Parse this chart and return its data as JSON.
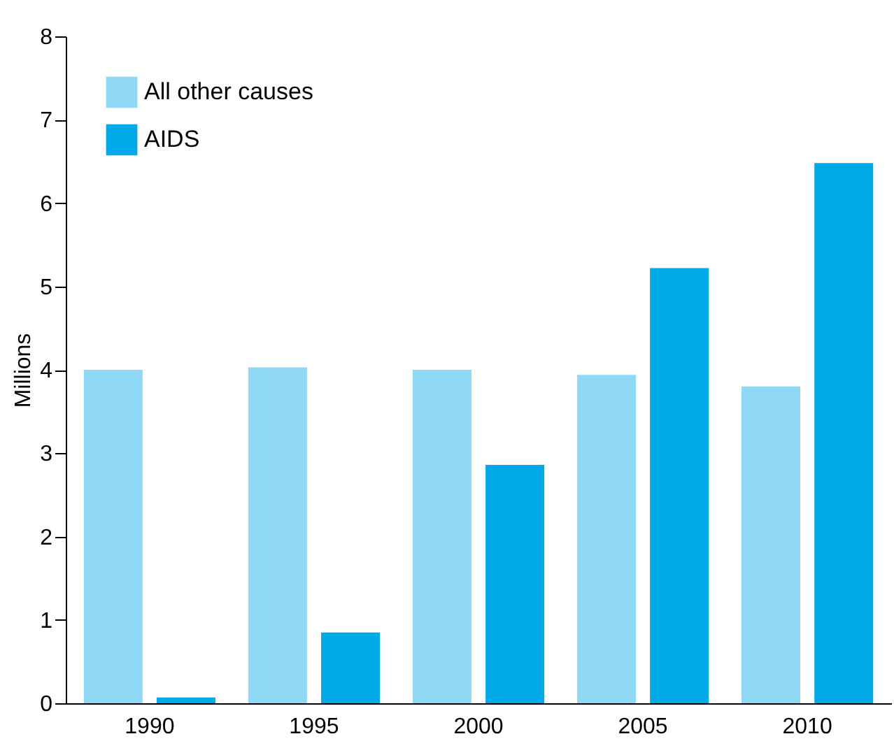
{
  "chart_data": {
    "type": "bar",
    "ylabel": "Millions",
    "categories": [
      "1990",
      "1995",
      "2000",
      "2005",
      "2010"
    ],
    "series": [
      {
        "name": "All other causes",
        "color": "#8fd9f6",
        "values": [
          4.0,
          4.03,
          4.0,
          3.94,
          3.8
        ]
      },
      {
        "name": "AIDS",
        "color": "#00a9e8",
        "values": [
          0.07,
          0.85,
          2.86,
          5.22,
          6.48
        ]
      }
    ],
    "ylim": [
      0,
      8
    ],
    "yticks": [
      0,
      1,
      2,
      3,
      4,
      5,
      6,
      7,
      8
    ],
    "grid": false,
    "legend": "top left"
  }
}
